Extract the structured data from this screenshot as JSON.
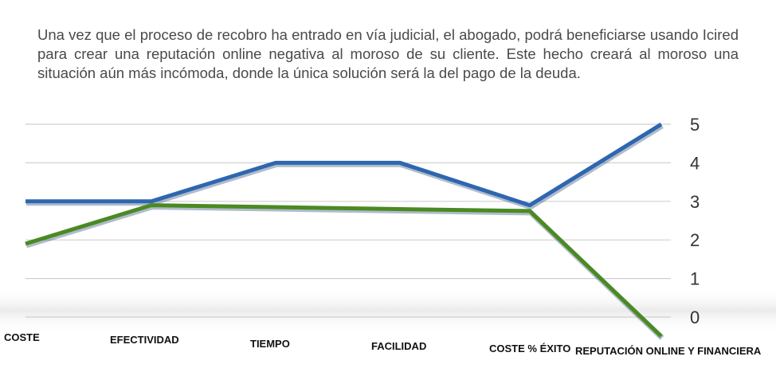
{
  "intro_text": "Una vez que el proceso de recobro ha entrado en vía judicial, el abogado, podrá beneficiarse usando Icired para crear una reputación online negativa al moroso de su cliente. Este hecho creará al moroso una situación aún más incómoda, donde la única solución será la del pago de la deuda.",
  "chart_data": {
    "type": "line",
    "categories": [
      "COSTE",
      "EFECTIVIDAD",
      "TIEMPO",
      "FACILIDAD",
      "COSTE % ÉXITO",
      "REPUTACIÓN ONLINE Y FINANCIERA"
    ],
    "series": [
      {
        "values": [
          3.0,
          3.0,
          4.0,
          4.0,
          2.9,
          5.0
        ],
        "color": "#2e66b0"
      },
      {
        "values": [
          1.9,
          2.9,
          2.85,
          2.8,
          2.75,
          -0.5
        ],
        "color": "#4a8a22"
      }
    ],
    "yticks": [
      0,
      1,
      2,
      3,
      4,
      5
    ],
    "ylim": [
      -0.5,
      5
    ],
    "title": "",
    "xlabel": "",
    "ylabel": "",
    "grid": true,
    "legend": "none"
  }
}
